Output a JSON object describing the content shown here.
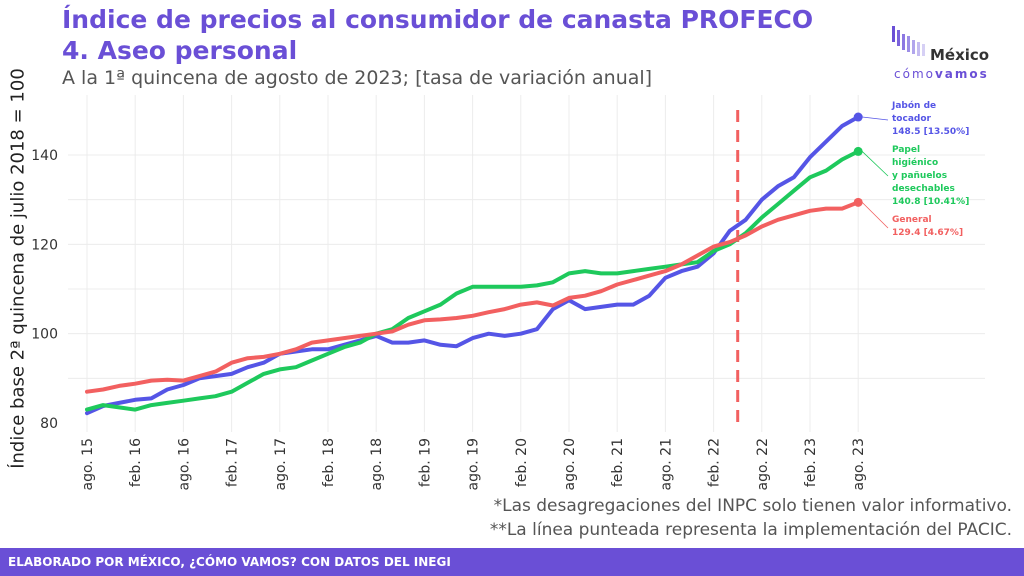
{
  "header": {
    "title_line1": "Índice de precios al consumidor de canasta PROFECO",
    "title_line2": "4. Aseo personal",
    "subtitle": "A la 1ª quincena de agosto de 2023; [tasa de variación anual]"
  },
  "logo": {
    "name": "México",
    "tag_part1": "cómo",
    "tag_part2": "vamos"
  },
  "notes": [
    "*Las desagregaciones del INPC solo tienen valor informativo.",
    "**La línea punteada representa la implementación del PACIC."
  ],
  "footer": {
    "text": "ELABORADO POR MÉXICO, ¿CÓMO VAMOS? CON DATOS DEL INEGI"
  },
  "chart_data": {
    "type": "line",
    "ylabel": "Índice base 2ª quincena de julio 2018 = 100",
    "xlabel": "",
    "ylim": [
      78,
      150
    ],
    "y_ticks": [
      80,
      100,
      120,
      140
    ],
    "x_tick_labels": [
      "ago. 15",
      "feb. 16",
      "ago. 16",
      "feb. 17",
      "ago. 17",
      "feb. 18",
      "ago. 18",
      "feb. 19",
      "ago. 19",
      "feb. 20",
      "ago. 20",
      "feb. 21",
      "ago. 21",
      "feb. 22",
      "ago. 22",
      "feb. 23",
      "ago. 23"
    ],
    "x_tick_months": [
      "2015-08",
      "2016-02",
      "2016-08",
      "2017-02",
      "2017-08",
      "2018-02",
      "2018-08",
      "2019-02",
      "2019-08",
      "2020-02",
      "2020-08",
      "2021-02",
      "2021-08",
      "2022-02",
      "2022-08",
      "2023-02",
      "2023-08"
    ],
    "dashed_vline": "2022-05",
    "grid": true,
    "legend": "end labels at right",
    "series": [
      {
        "name": "Jabón de tocador",
        "color": "#5555e6",
        "end_label": [
          "Jabón de",
          "tocador",
          "148.5 [13.50%]"
        ],
        "points": [
          [
            "2015-08",
            82.2
          ],
          [
            "2015-10",
            83.8
          ],
          [
            "2015-12",
            84.5
          ],
          [
            "2016-02",
            85.2
          ],
          [
            "2016-04",
            85.5
          ],
          [
            "2016-06",
            87.5
          ],
          [
            "2016-08",
            88.5
          ],
          [
            "2016-10",
            90.0
          ],
          [
            "2016-12",
            90.5
          ],
          [
            "2017-02",
            91.0
          ],
          [
            "2017-04",
            92.5
          ],
          [
            "2017-06",
            93.5
          ],
          [
            "2017-08",
            95.5
          ],
          [
            "2017-10",
            96.0
          ],
          [
            "2017-12",
            96.5
          ],
          [
            "2018-02",
            96.5
          ],
          [
            "2018-04",
            97.5
          ],
          [
            "2018-06",
            98.5
          ],
          [
            "2018-08",
            99.5
          ],
          [
            "2018-10",
            98.0
          ],
          [
            "2018-12",
            98.0
          ],
          [
            "2019-02",
            98.5
          ],
          [
            "2019-04",
            97.5
          ],
          [
            "2019-06",
            97.2
          ],
          [
            "2019-08",
            99.0
          ],
          [
            "2019-10",
            100.0
          ],
          [
            "2019-12",
            99.5
          ],
          [
            "2020-02",
            100.0
          ],
          [
            "2020-04",
            101.0
          ],
          [
            "2020-06",
            105.5
          ],
          [
            "2020-08",
            107.5
          ],
          [
            "2020-10",
            105.5
          ],
          [
            "2020-12",
            106.0
          ],
          [
            "2021-02",
            106.5
          ],
          [
            "2021-04",
            106.5
          ],
          [
            "2021-06",
            108.5
          ],
          [
            "2021-08",
            112.5
          ],
          [
            "2021-10",
            114.0
          ],
          [
            "2021-12",
            115.0
          ],
          [
            "2022-02",
            118.0
          ],
          [
            "2022-04",
            123.0
          ],
          [
            "2022-06",
            125.5
          ],
          [
            "2022-08",
            130.0
          ],
          [
            "2022-10",
            133.0
          ],
          [
            "2022-12",
            135.0
          ],
          [
            "2023-02",
            139.5
          ],
          [
            "2023-04",
            143.0
          ],
          [
            "2023-06",
            146.5
          ],
          [
            "2023-08",
            148.5
          ]
        ]
      },
      {
        "name": "Papel higiénico y pañuelos desechables",
        "color": "#1ec95c",
        "end_label": [
          "Papel",
          "higiénico",
          "y pañuelos",
          "desechables",
          "140.8 [10.41%]"
        ],
        "points": [
          [
            "2015-08",
            83.0
          ],
          [
            "2015-10",
            84.0
          ],
          [
            "2015-12",
            83.5
          ],
          [
            "2016-02",
            83.0
          ],
          [
            "2016-04",
            84.0
          ],
          [
            "2016-06",
            84.5
          ],
          [
            "2016-08",
            85.0
          ],
          [
            "2016-10",
            85.5
          ],
          [
            "2016-12",
            86.0
          ],
          [
            "2017-02",
            87.0
          ],
          [
            "2017-04",
            89.0
          ],
          [
            "2017-06",
            91.0
          ],
          [
            "2017-08",
            92.0
          ],
          [
            "2017-10",
            92.5
          ],
          [
            "2017-12",
            94.0
          ],
          [
            "2018-02",
            95.5
          ],
          [
            "2018-04",
            97.0
          ],
          [
            "2018-06",
            98.0
          ],
          [
            "2018-08",
            100.0
          ],
          [
            "2018-10",
            101.0
          ],
          [
            "2018-12",
            103.5
          ],
          [
            "2019-02",
            105.0
          ],
          [
            "2019-04",
            106.5
          ],
          [
            "2019-06",
            109.0
          ],
          [
            "2019-08",
            110.5
          ],
          [
            "2019-10",
            110.5
          ],
          [
            "2019-12",
            110.5
          ],
          [
            "2020-02",
            110.5
          ],
          [
            "2020-04",
            110.8
          ],
          [
            "2020-06",
            111.5
          ],
          [
            "2020-08",
            113.5
          ],
          [
            "2020-10",
            114.0
          ],
          [
            "2020-12",
            113.5
          ],
          [
            "2021-02",
            113.5
          ],
          [
            "2021-04",
            114.0
          ],
          [
            "2021-06",
            114.5
          ],
          [
            "2021-08",
            115.0
          ],
          [
            "2021-10",
            115.5
          ],
          [
            "2021-12",
            116.0
          ],
          [
            "2022-02",
            118.5
          ],
          [
            "2022-04",
            120.0
          ],
          [
            "2022-06",
            122.5
          ],
          [
            "2022-08",
            126.0
          ],
          [
            "2022-10",
            129.0
          ],
          [
            "2022-12",
            132.0
          ],
          [
            "2023-02",
            135.0
          ],
          [
            "2023-04",
            136.5
          ],
          [
            "2023-06",
            139.0
          ],
          [
            "2023-08",
            140.8
          ]
        ]
      },
      {
        "name": "General",
        "color": "#f26060",
        "end_label": [
          "General",
          "129.4 [4.67%]"
        ],
        "points": [
          [
            "2015-08",
            87.0
          ],
          [
            "2015-10",
            87.5
          ],
          [
            "2015-12",
            88.3
          ],
          [
            "2016-02",
            88.8
          ],
          [
            "2016-04",
            89.5
          ],
          [
            "2016-06",
            89.7
          ],
          [
            "2016-08",
            89.5
          ],
          [
            "2016-10",
            90.5
          ],
          [
            "2016-12",
            91.5
          ],
          [
            "2017-02",
            93.5
          ],
          [
            "2017-04",
            94.5
          ],
          [
            "2017-06",
            94.8
          ],
          [
            "2017-08",
            95.5
          ],
          [
            "2017-10",
            96.5
          ],
          [
            "2017-12",
            98.0
          ],
          [
            "2018-02",
            98.5
          ],
          [
            "2018-04",
            99.0
          ],
          [
            "2018-06",
            99.5
          ],
          [
            "2018-08",
            100.0
          ],
          [
            "2018-10",
            100.5
          ],
          [
            "2018-12",
            102.0
          ],
          [
            "2019-02",
            103.0
          ],
          [
            "2019-04",
            103.2
          ],
          [
            "2019-06",
            103.5
          ],
          [
            "2019-08",
            104.0
          ],
          [
            "2019-10",
            104.8
          ],
          [
            "2019-12",
            105.5
          ],
          [
            "2020-02",
            106.5
          ],
          [
            "2020-04",
            107.0
          ],
          [
            "2020-06",
            106.3
          ],
          [
            "2020-08",
            108.0
          ],
          [
            "2020-10",
            108.5
          ],
          [
            "2020-12",
            109.5
          ],
          [
            "2021-02",
            111.0
          ],
          [
            "2021-04",
            112.0
          ],
          [
            "2021-06",
            113.0
          ],
          [
            "2021-08",
            114.0
          ],
          [
            "2021-10",
            115.5
          ],
          [
            "2021-12",
            117.5
          ],
          [
            "2022-02",
            119.5
          ],
          [
            "2022-04",
            120.5
          ],
          [
            "2022-06",
            122.0
          ],
          [
            "2022-08",
            124.0
          ],
          [
            "2022-10",
            125.5
          ],
          [
            "2022-12",
            126.5
          ],
          [
            "2023-02",
            127.5
          ],
          [
            "2023-04",
            128.0
          ],
          [
            "2023-06",
            128.0
          ],
          [
            "2023-08",
            129.4
          ]
        ]
      }
    ]
  }
}
